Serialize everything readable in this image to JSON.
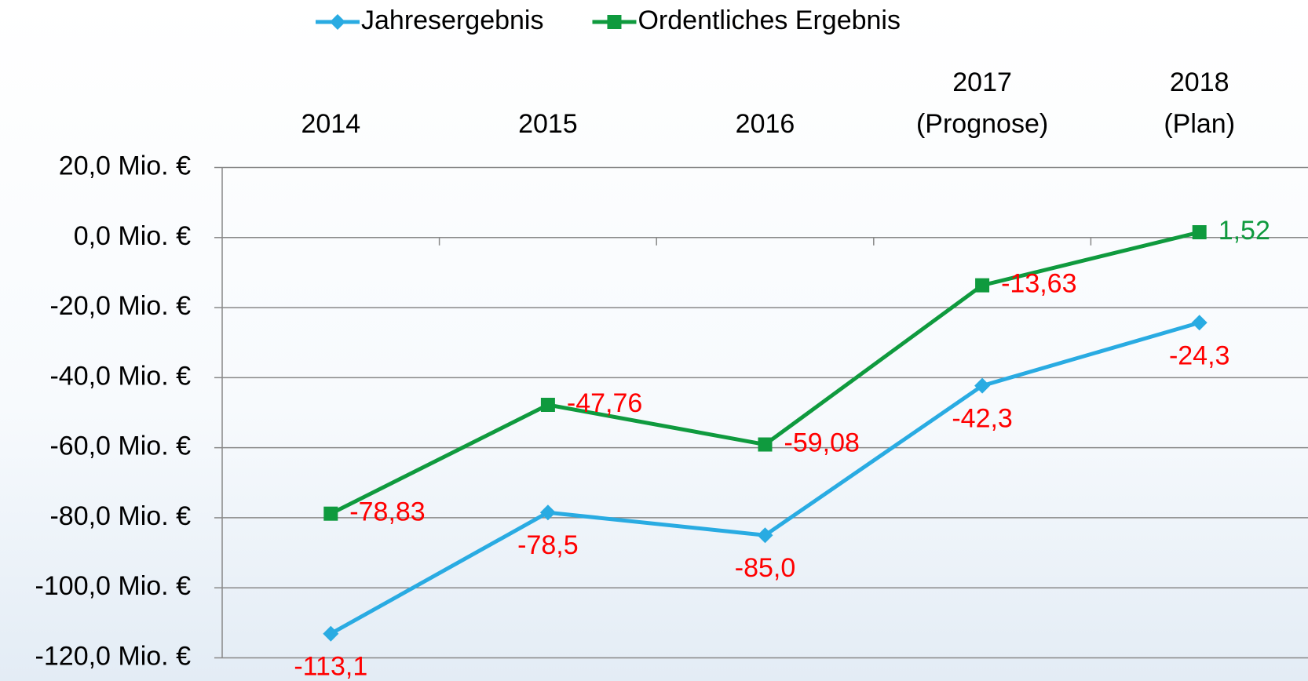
{
  "chart_data": {
    "type": "line",
    "categories": [
      "2014",
      "2015",
      "2016",
      "2017\n(Prognose)",
      "2018\n(Plan)"
    ],
    "series": [
      {
        "name": "Jahresergebnis",
        "color": "#29abe2",
        "marker": "diamond",
        "values": [
          -113.1,
          -78.5,
          -85.0,
          -42.3,
          -24.3
        ],
        "value_labels": [
          "-113,1",
          "-78,5",
          "-85,0",
          "-42,3",
          "-24,3"
        ],
        "value_label_colors": [
          "#ff0000",
          "#ff0000",
          "#ff0000",
          "#ff0000",
          "#ff0000"
        ],
        "label_position": "below"
      },
      {
        "name": "Ordentliches Ergebnis",
        "color": "#0f9a3e",
        "marker": "square",
        "values": [
          -78.83,
          -47.76,
          -59.08,
          -13.63,
          1.52
        ],
        "value_labels": [
          "-78,83",
          "-47,76",
          "-59,08",
          "-13,63",
          "1,52"
        ],
        "value_label_colors": [
          "#ff0000",
          "#ff0000",
          "#ff0000",
          "#ff0000",
          "#0f9a3e"
        ],
        "label_position": "right"
      }
    ],
    "ylim": [
      -120,
      20
    ],
    "yticks": [
      {
        "value": 20,
        "label": "20,0 Mio. €"
      },
      {
        "value": 0,
        "label": "0,0 Mio. €"
      },
      {
        "value": -20,
        "label": "-20,0 Mio. €"
      },
      {
        "value": -40,
        "label": "-40,0 Mio. €"
      },
      {
        "value": -60,
        "label": "-60,0 Mio. €"
      },
      {
        "value": -80,
        "label": "-80,0 Mio. €"
      },
      {
        "value": -100,
        "label": "-100,0 Mio. €"
      },
      {
        "value": -120,
        "label": "-120,0 Mio. €"
      }
    ],
    "grid": true,
    "legend": "top",
    "x_axis_position": "top"
  }
}
